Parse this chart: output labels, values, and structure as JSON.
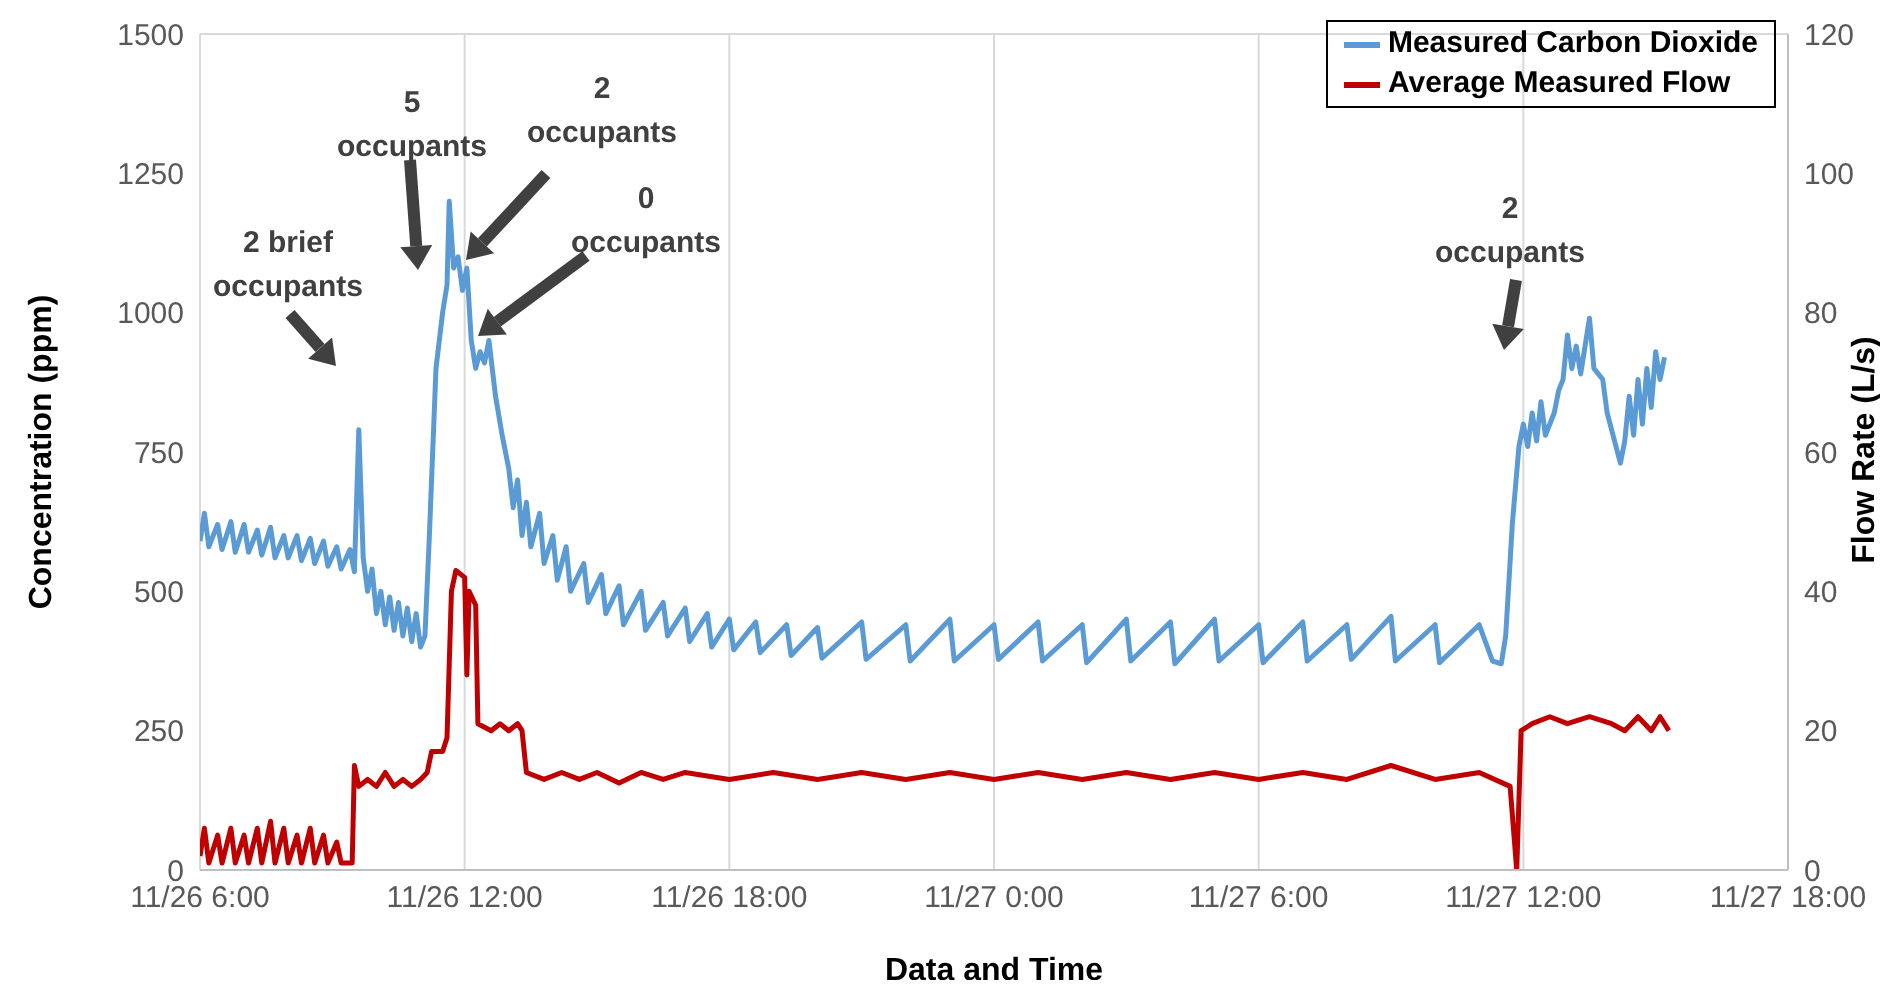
{
  "chart_data": {
    "type": "line",
    "xlabel": "Data and Time",
    "ylabel": "Concentration (ppm)",
    "y2label": "Flow Rate (L/s)",
    "xlim": [
      "--11-26T06:00",
      "--11-27T18:00"
    ],
    "xticks": [
      {
        "value": "--11-26T06:00",
        "label": "11/26 6:00"
      },
      {
        "value": "--11-26T12:00",
        "label": "11/26 12:00"
      },
      {
        "value": "--11-26T18:00",
        "label": "11/26 18:00"
      },
      {
        "value": "--11-27T00:00",
        "label": "11/27 0:00"
      },
      {
        "value": "--11-27T06:00",
        "label": "11/27 6:00"
      },
      {
        "value": "--11-27T12:00",
        "label": "11/27 12:00"
      },
      {
        "value": "--11-27T18:00",
        "label": "11/27 18:00"
      }
    ],
    "ylim": [
      0,
      1500
    ],
    "yticks": [
      0,
      250,
      500,
      750,
      1000,
      1250,
      1500
    ],
    "y2lim": [
      0,
      120
    ],
    "y2ticks": [
      0,
      20,
      40,
      60,
      80,
      100,
      120
    ],
    "grid": true,
    "legend": "top right",
    "marker": "none",
    "line_style": "solid",
    "series": [
      {
        "name": "Measured Carbon Dioxide",
        "color": "#5b9bd5",
        "x": [
          "--11-26T06:00",
          "--11-26T06:06",
          "--11-26T06:12",
          "--11-26T06:24",
          "--11-26T06:30",
          "--11-26T06:42",
          "--11-26T06:48",
          "--11-26T07:00",
          "--11-26T07:06",
          "--11-26T07:18",
          "--11-26T07:24",
          "--11-26T07:36",
          "--11-26T07:42",
          "--11-26T07:54",
          "--11-26T08:00",
          "--11-26T08:12",
          "--11-26T08:18",
          "--11-26T08:30",
          "--11-26T08:36",
          "--11-26T08:48",
          "--11-26T08:54",
          "--11-26T09:06",
          "--11-26T09:12",
          "--11-26T09:24",
          "--11-26T09:30",
          "--11-26T09:36",
          "--11-26T09:42",
          "--11-26T09:48",
          "--11-26T09:54",
          "--11-26T10:00",
          "--11-26T10:06",
          "--11-26T10:12",
          "--11-26T10:18",
          "--11-26T10:24",
          "--11-26T10:30",
          "--11-26T10:36",
          "--11-26T10:42",
          "--11-26T10:48",
          "--11-26T10:54",
          "--11-26T11:00",
          "--11-26T11:06",
          "--11-26T11:12",
          "--11-26T11:21",
          "--11-26T11:30",
          "--11-26T11:36",
          "--11-26T11:39",
          "--11-26T11:45",
          "--11-26T11:51",
          "--11-26T11:57",
          "--11-26T12:03",
          "--11-26T12:09",
          "--11-26T12:15",
          "--11-26T12:21",
          "--11-26T12:27",
          "--11-26T12:33",
          "--11-26T12:42",
          "--11-26T12:51",
          "--11-26T13:00",
          "--11-26T13:06",
          "--11-26T13:12",
          "--11-26T13:18",
          "--11-26T13:24",
          "--11-26T13:30",
          "--11-26T13:42",
          "--11-26T13:48",
          "--11-26T14:00",
          "--11-26T14:06",
          "--11-26T14:18",
          "--11-26T14:24",
          "--11-26T14:42",
          "--11-26T14:48",
          "--11-26T15:06",
          "--11-26T15:12",
          "--11-26T15:30",
          "--11-26T15:36",
          "--11-26T16:00",
          "--11-26T16:06",
          "--11-26T16:30",
          "--11-26T16:36",
          "--11-26T17:00",
          "--11-26T17:06",
          "--11-26T17:30",
          "--11-26T17:36",
          "--11-26T18:00",
          "--11-26T18:06",
          "--11-26T18:36",
          "--11-26T18:42",
          "--11-26T19:18",
          "--11-26T19:24",
          "--11-26T20:00",
          "--11-26T20:06",
          "--11-26T21:00",
          "--11-26T21:06",
          "--11-26T22:00",
          "--11-26T22:06",
          "--11-26T23:00",
          "--11-26T23:06",
          "--11-27T00:00",
          "--11-27T00:06",
          "--11-27T01:00",
          "--11-27T01:06",
          "--11-27T02:00",
          "--11-27T02:06",
          "--11-27T03:00",
          "--11-27T03:06",
          "--11-27T04:00",
          "--11-27T04:06",
          "--11-27T05:00",
          "--11-27T05:06",
          "--11-27T06:00",
          "--11-27T06:06",
          "--11-27T07:00",
          "--11-27T07:06",
          "--11-27T08:00",
          "--11-27T08:06",
          "--11-27T09:00",
          "--11-27T09:06",
          "--11-27T10:00",
          "--11-27T10:06",
          "--11-27T11:00",
          "--11-27T11:18",
          "--11-27T11:30",
          "--11-27T11:36",
          "--11-27T11:45",
          "--11-27T11:54",
          "--11-27T12:00",
          "--11-27T12:06",
          "--11-27T12:12",
          "--11-27T12:18",
          "--11-27T12:24",
          "--11-27T12:30",
          "--11-27T12:42",
          "--11-27T12:48",
          "--11-27T12:54",
          "--11-27T13:00",
          "--11-27T13:06",
          "--11-27T13:12",
          "--11-27T13:18",
          "--11-27T13:30",
          "--11-27T13:36",
          "--11-27T13:48",
          "--11-27T13:54",
          "--11-27T14:00",
          "--11-27T14:06",
          "--11-27T14:12",
          "--11-27T14:18",
          "--11-27T14:24",
          "--11-27T14:30",
          "--11-27T14:36",
          "--11-27T14:42",
          "--11-27T14:48",
          "--11-27T14:54",
          "--11-27T15:00",
          "--11-27T15:06",
          "--11-27T15:12"
        ],
        "values": [
          590,
          640,
          580,
          620,
          575,
          625,
          570,
          620,
          570,
          610,
          565,
          615,
          560,
          600,
          560,
          600,
          555,
          595,
          550,
          590,
          545,
          580,
          540,
          575,
          535,
          790,
          560,
          500,
          540,
          460,
          500,
          440,
          490,
          430,
          480,
          420,
          470,
          410,
          460,
          400,
          420,
          600,
          900,
          1000,
          1050,
          1200,
          1080,
          1100,
          1040,
          1080,
          950,
          900,
          930,
          910,
          950,
          850,
          780,
          720,
          650,
          700,
          600,
          660,
          580,
          640,
          550,
          600,
          520,
          580,
          500,
          550,
          480,
          530,
          460,
          510,
          440,
          500,
          430,
          480,
          420,
          470,
          410,
          460,
          400,
          450,
          395,
          445,
          390,
          440,
          385,
          435,
          380,
          445,
          378,
          440,
          375,
          450,
          375,
          440,
          378,
          445,
          375,
          440,
          372,
          450,
          375,
          445,
          370,
          450,
          375,
          440,
          372,
          445,
          375,
          440,
          378,
          455,
          375,
          440,
          372,
          440,
          375,
          370,
          420,
          620,
          760,
          800,
          760,
          820,
          770,
          840,
          780,
          820,
          860,
          880,
          960,
          900,
          940,
          890,
          990,
          900,
          880,
          820,
          790,
          760,
          730,
          770,
          850,
          780,
          880,
          800,
          900,
          830,
          930,
          880,
          920
        ]
      },
      {
        "name": "Average Measured Flow",
        "color": "#c00000",
        "axis": "y2",
        "x": [
          "--11-26T06:00",
          "--11-26T06:06",
          "--11-26T06:12",
          "--11-26T06:24",
          "--11-26T06:30",
          "--11-26T06:42",
          "--11-26T06:48",
          "--11-26T07:00",
          "--11-26T07:06",
          "--11-26T07:18",
          "--11-26T07:24",
          "--11-26T07:36",
          "--11-26T07:42",
          "--11-26T07:54",
          "--11-26T08:00",
          "--11-26T08:12",
          "--11-26T08:18",
          "--11-26T08:30",
          "--11-26T08:36",
          "--11-26T08:48",
          "--11-26T08:54",
          "--11-26T09:06",
          "--11-26T09:12",
          "--11-26T09:27",
          "--11-26T09:30",
          "--11-26T09:36",
          "--11-26T09:48",
          "--11-26T10:00",
          "--11-26T10:12",
          "--11-26T10:24",
          "--11-26T10:36",
          "--11-26T10:48",
          "--11-26T11:00",
          "--11-26T11:09",
          "--11-26T11:15",
          "--11-26T11:30",
          "--11-26T11:36",
          "--11-26T11:42",
          "--11-26T11:48",
          "--11-26T12:00",
          "--11-26T12:03",
          "--11-26T12:06",
          "--11-26T12:15",
          "--11-26T12:18",
          "--11-26T12:36",
          "--11-26T12:48",
          "--11-26T13:00",
          "--11-26T13:12",
          "--11-26T13:18",
          "--11-26T13:24",
          "--11-26T13:48",
          "--11-26T14:12",
          "--11-26T14:36",
          "--11-26T15:00",
          "--11-26T15:30",
          "--11-26T16:00",
          "--11-26T16:30",
          "--11-26T17:00",
          "--11-26T18:00",
          "--11-26T19:00",
          "--11-26T20:00",
          "--11-26T21:00",
          "--11-26T22:00",
          "--11-26T23:00",
          "--11-27T00:00",
          "--11-27T01:00",
          "--11-27T02:00",
          "--11-27T03:00",
          "--11-27T04:00",
          "--11-27T05:00",
          "--11-27T06:00",
          "--11-27T07:00",
          "--11-27T08:00",
          "--11-27T09:00",
          "--11-27T10:00",
          "--11-27T11:00",
          "--11-27T11:42",
          "--11-27T11:51",
          "--11-27T11:57",
          "--11-27T12:12",
          "--11-27T12:36",
          "--11-27T13:00",
          "--11-27T13:30",
          "--11-27T14:00",
          "--11-27T14:18",
          "--11-27T14:36",
          "--11-27T14:54",
          "--11-27T15:06",
          "--11-27T15:18"
        ],
        "values": [
          2,
          6,
          1,
          5,
          1,
          6,
          1,
          5,
          1,
          6,
          1,
          7,
          1,
          6,
          1,
          5,
          1,
          6,
          1,
          5,
          1,
          4,
          1,
          1,
          15,
          12,
          13,
          12,
          14,
          12,
          13,
          12,
          13,
          14,
          17,
          17,
          19,
          40,
          43,
          42,
          28,
          40,
          38,
          21,
          20,
          21,
          20,
          21,
          20,
          14,
          13,
          14,
          13,
          14,
          12.5,
          14,
          13,
          14,
          13,
          14,
          13,
          14,
          13,
          14,
          13,
          14,
          13,
          14,
          13,
          14,
          13,
          14,
          13,
          15,
          13,
          14,
          12,
          0,
          20,
          21,
          22,
          21,
          22,
          21,
          20,
          22,
          20,
          22,
          20
        ]
      }
    ],
    "annotations": [
      "2 brief occupants",
      "5 occupants",
      "2 occupants",
      "0 occupants",
      "2 occupants"
    ]
  }
}
